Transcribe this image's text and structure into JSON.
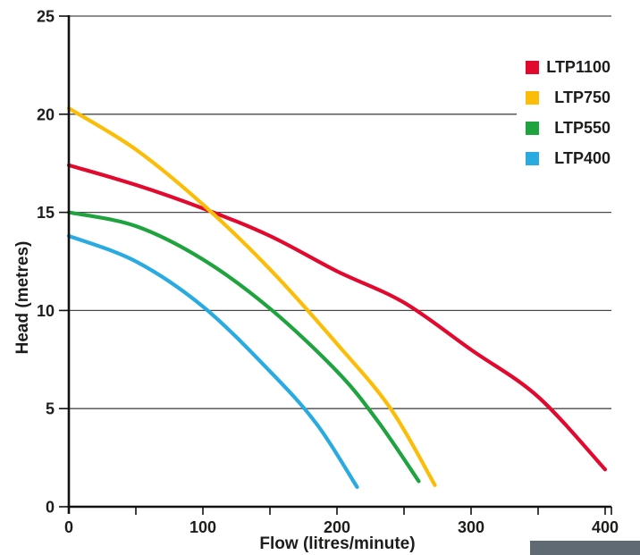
{
  "chart_data": {
    "type": "line",
    "title": "",
    "xlabel": "Flow (litres/minute)",
    "ylabel": "Head (metres)",
    "xlim": [
      0,
      405
    ],
    "ylim": [
      0,
      25
    ],
    "x_tick_labels": [
      0,
      100,
      200,
      300,
      400
    ],
    "x_ticks_all": [
      50,
      100,
      150,
      200,
      250,
      300,
      350,
      400
    ],
    "y_ticks": [
      0,
      5,
      10,
      15,
      20,
      25
    ],
    "grid": "horizontal",
    "legend_position": "top-right",
    "series": [
      {
        "name": "LTP1100",
        "color": "#e2092f",
        "points": [
          [
            0,
            17.4
          ],
          [
            50,
            16.4
          ],
          [
            100,
            15.2
          ],
          [
            150,
            13.8
          ],
          [
            200,
            12.0
          ],
          [
            250,
            10.4
          ],
          [
            300,
            8.0
          ],
          [
            350,
            5.6
          ],
          [
            400,
            1.9
          ]
        ]
      },
      {
        "name": "LTP750",
        "color": "#fbbd08",
        "points": [
          [
            0,
            20.3
          ],
          [
            50,
            18.2
          ],
          [
            100,
            15.4
          ],
          [
            150,
            12.1
          ],
          [
            200,
            8.3
          ],
          [
            240,
            5.0
          ],
          [
            273,
            1.1
          ]
        ]
      },
      {
        "name": "LTP550",
        "color": "#1fa33e",
        "points": [
          [
            0,
            15.0
          ],
          [
            50,
            14.3
          ],
          [
            100,
            12.6
          ],
          [
            150,
            10.1
          ],
          [
            200,
            6.9
          ],
          [
            230,
            4.4
          ],
          [
            261,
            1.3
          ]
        ]
      },
      {
        "name": "LTP400",
        "color": "#29abe2",
        "points": [
          [
            0,
            13.8
          ],
          [
            50,
            12.5
          ],
          [
            100,
            10.2
          ],
          [
            150,
            6.9
          ],
          [
            185,
            4.2
          ],
          [
            215,
            1.0
          ]
        ]
      }
    ],
    "colors": {
      "gridline": "#4a4a4a",
      "axis": "#111111",
      "text": "#1d1d1b",
      "badge": "#5f6a73"
    }
  },
  "badge": {
    "visible": true,
    "label": ""
  }
}
